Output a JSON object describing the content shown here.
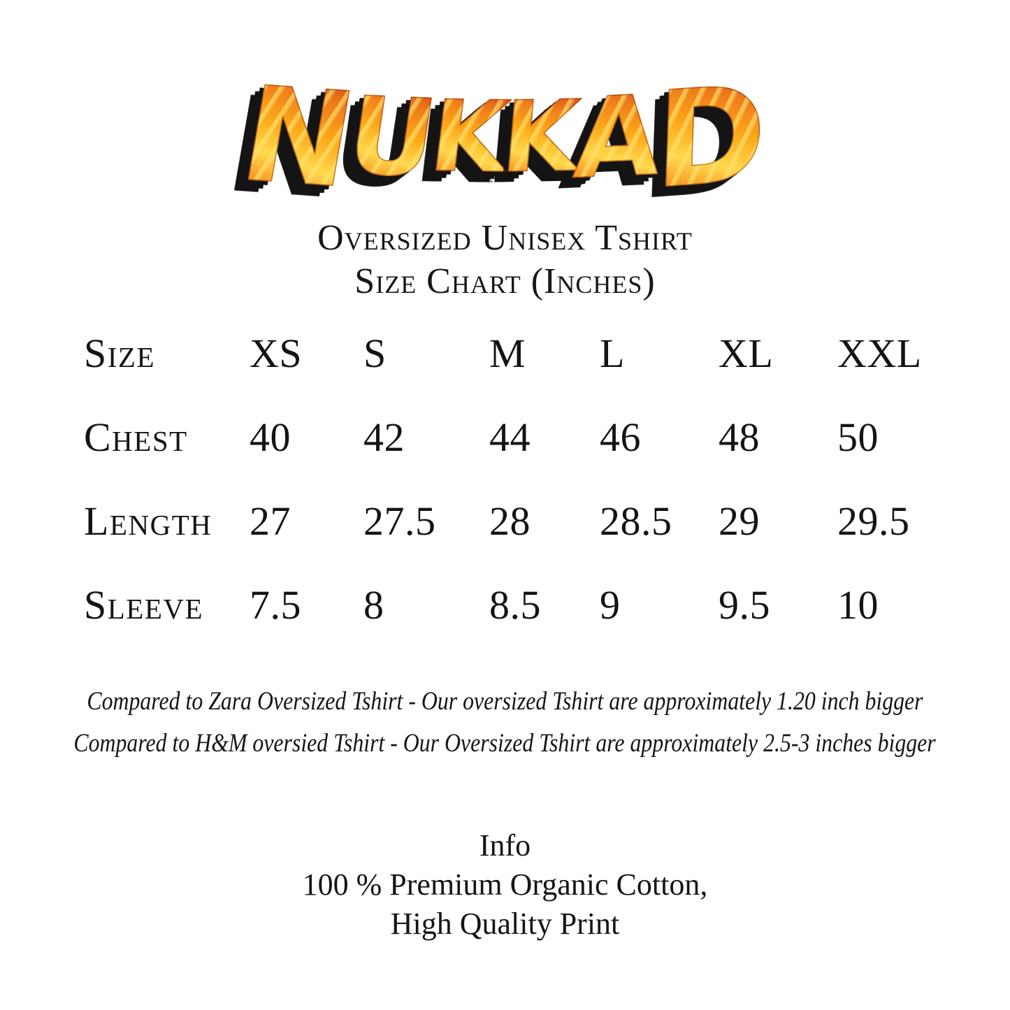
{
  "brand": {
    "logo_text": "NUKKAD",
    "logo_colors": {
      "fire_yellow": "#ffd84d",
      "fire_gold": "#fba919",
      "fire_orange": "#f6921e",
      "fire_deep_orange": "#e45a14",
      "fire_red": "#c8400e",
      "shadow_black": "#141414"
    }
  },
  "header": {
    "line1": "Oversized Unisex Tshirt",
    "line2": "Size Chart (Inches)"
  },
  "size_chart": {
    "header_label": "Size",
    "columns": [
      "XS",
      "S",
      "M",
      "L",
      "XL",
      "XXL"
    ],
    "rows": [
      {
        "label": "Chest",
        "values": [
          "40",
          "42",
          "44",
          "46",
          "48",
          "50"
        ]
      },
      {
        "label": "Length",
        "values": [
          "27",
          "27.5",
          "28",
          "28.5",
          "29",
          "29.5"
        ]
      },
      {
        "label": "Sleeve",
        "values": [
          "7.5",
          "8",
          "8.5",
          "9",
          "9.5",
          "10"
        ]
      }
    ],
    "unit": "Inches"
  },
  "notes": [
    "Compared to Zara Oversized Tshirt - Our oversized Tshirt are approximately 1.20 inch bigger",
    "Compared to H&M oversied Tshirt - Our Oversized Tshirt are approximately 2.5-3 inches bigger"
  ],
  "info": {
    "title": "Info",
    "lines": [
      "100 % Premium Organic Cotton,",
      "High Quality Print"
    ]
  },
  "text_color": "#141414",
  "background_color": "#ffffff"
}
